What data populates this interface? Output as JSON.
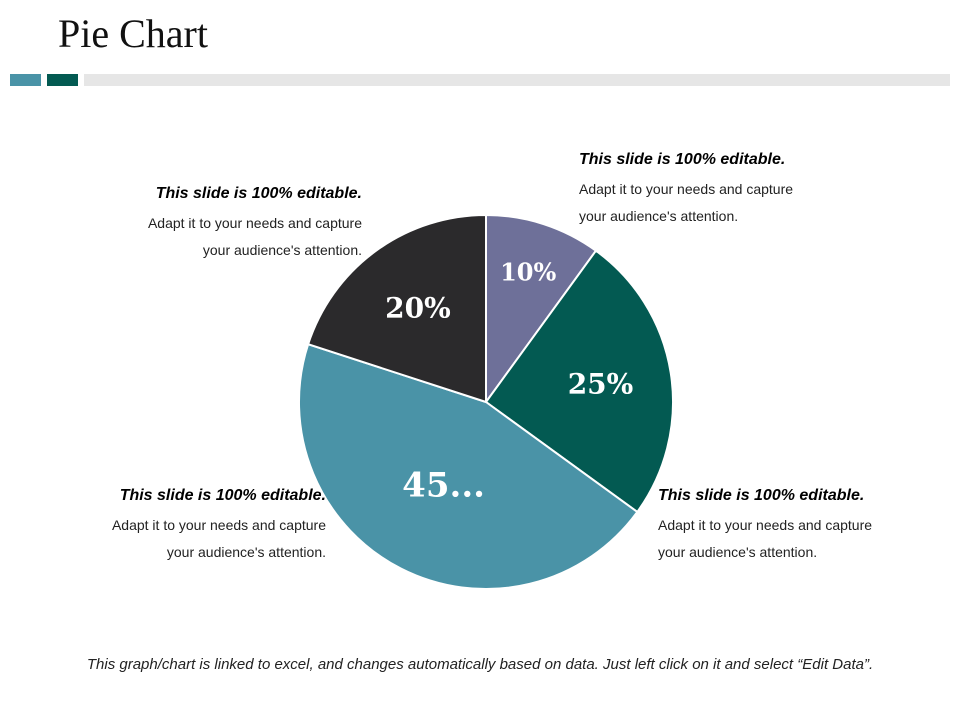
{
  "header": {
    "title": "Pie Chart"
  },
  "callouts": {
    "top_left": {
      "heading": "This slide is 100% editable.",
      "line1": "Adapt it to your needs and capture",
      "line2": "your audience's attention."
    },
    "top_right": {
      "heading": "This slide is 100% editable.",
      "line1": "Adapt it to your needs and capture",
      "line2": "your audience's attention."
    },
    "bottom_left": {
      "heading": "This slide is 100% editable.",
      "line1": "Adapt it to your needs and capture",
      "line2": "your audience's attention."
    },
    "bottom_right": {
      "heading": "This slide is 100% editable.",
      "line1": "Adapt it to your needs and capture",
      "line2": "your audience's attention."
    }
  },
  "footnote": "This graph/chart is linked to excel, and changes automatically based on data. Just left click on it and select “Edit Data”.",
  "chart_data": {
    "type": "pie",
    "values": [
      10,
      25,
      45,
      20
    ],
    "labels": [
      "10%",
      "25%",
      "45...",
      "20%"
    ],
    "colors": [
      "#6e7099",
      "#035a52",
      "#4a93a7",
      "#2b2a2c"
    ],
    "start_angle": "12 o'clock",
    "direction": "clockwise",
    "legend": "none"
  }
}
